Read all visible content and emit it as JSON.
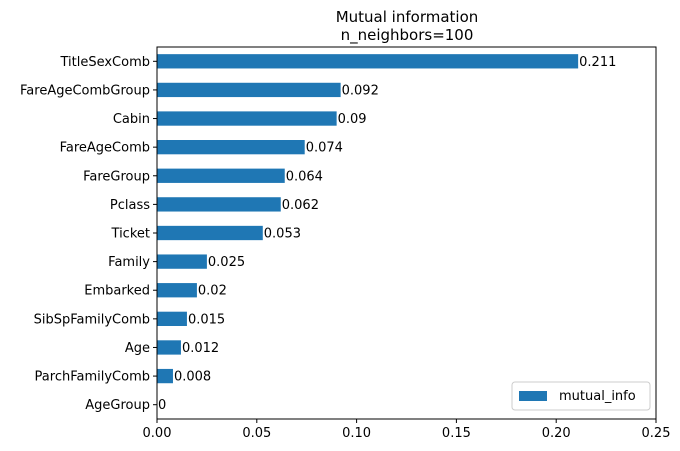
{
  "chart_data": {
    "type": "bar",
    "orientation": "horizontal",
    "title": "Mutual information",
    "subtitle": "n_neighbors=100",
    "categories": [
      "TitleSexComb",
      "FareAgeCombGroup",
      "Cabin",
      "FareAgeComb",
      "FareGroup",
      "Pclass",
      "Ticket",
      "Family",
      "Embarked",
      "SibSpFamilyComb",
      "Age",
      "ParchFamilyComb",
      "AgeGroup"
    ],
    "values": [
      0.211,
      0.092,
      0.09,
      0.074,
      0.064,
      0.062,
      0.053,
      0.025,
      0.02,
      0.015,
      0.012,
      0.008,
      0
    ],
    "value_labels": [
      "0.211",
      "0.092",
      "0.09",
      "0.074",
      "0.064",
      "0.062",
      "0.053",
      "0.025",
      "0.02",
      "0.015",
      "0.012",
      "0.008",
      "0"
    ],
    "xlim": [
      0,
      0.25
    ],
    "xticks": [
      0,
      0.05,
      0.1,
      0.15,
      0.2,
      0.25
    ],
    "xtick_labels": [
      "0.00",
      "0.05",
      "0.10",
      "0.15",
      "0.20",
      "0.25"
    ],
    "series": [
      {
        "name": "mutual_info",
        "color": "#1f77b4"
      }
    ],
    "legend_position": "lower-right",
    "grid": false,
    "xlabel": "",
    "ylabel": ""
  }
}
